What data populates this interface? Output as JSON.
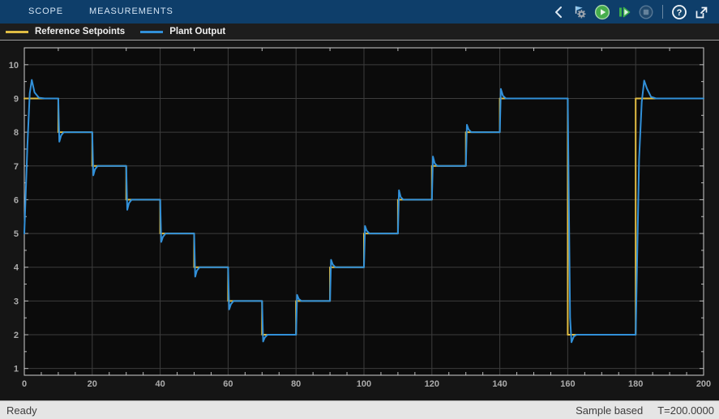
{
  "tab_bar": {
    "tabs": [
      {
        "label": "SCOPE"
      },
      {
        "label": "MEASUREMENTS"
      }
    ]
  },
  "toolbar": {
    "buttons": [
      {
        "icon": "chevron-collapse",
        "enabled": true
      },
      {
        "icon": "simulation-settings-flag-gear",
        "enabled": true
      },
      {
        "icon": "run",
        "enabled": true
      },
      {
        "icon": "step-forward",
        "enabled": true
      },
      {
        "icon": "stop",
        "enabled": false
      },
      {
        "icon": "help",
        "enabled": true
      },
      {
        "icon": "pop-out",
        "enabled": true
      }
    ],
    "help_glyph": "?"
  },
  "legend": {
    "items": [
      {
        "label": "Reference Setpoints",
        "color": "#e0bc43"
      },
      {
        "label": "Plant Output",
        "color": "#3190d9"
      }
    ]
  },
  "status_bar": {
    "left": "Ready",
    "sample_mode": "Sample based",
    "time": "T=200.0000"
  },
  "chart_data": {
    "type": "line",
    "title": "",
    "xlabel": "",
    "ylabel": "",
    "xlim": [
      0,
      200
    ],
    "ylim": [
      0.8,
      10.5
    ],
    "xticks": [
      0,
      20,
      40,
      60,
      80,
      100,
      120,
      140,
      160,
      180,
      200
    ],
    "yticks": [
      1,
      2,
      3,
      4,
      5,
      6,
      7,
      8,
      9,
      10
    ],
    "x_minor_step": 5,
    "y_minor_step": 0.5,
    "grid": true,
    "legend_position": "top-left-strip",
    "plot_bg": "#0b0b0b",
    "grid_color": "#3d3d3d",
    "axis_color": "#cfcfcf",
    "tick_color": "#b8b8b8",
    "tick_label_color": "#acacac",
    "series": [
      {
        "name": "Reference Setpoints",
        "color": "#e0bc43",
        "style": "step",
        "points": [
          [
            0,
            9
          ],
          [
            10,
            9
          ],
          [
            10,
            8
          ],
          [
            20,
            8
          ],
          [
            20,
            7
          ],
          [
            30,
            7
          ],
          [
            30,
            6
          ],
          [
            40,
            6
          ],
          [
            40,
            5
          ],
          [
            50,
            5
          ],
          [
            50,
            4
          ],
          [
            60,
            4
          ],
          [
            60,
            3
          ],
          [
            70,
            3
          ],
          [
            70,
            2
          ],
          [
            80,
            2
          ],
          [
            80,
            3
          ],
          [
            90,
            3
          ],
          [
            90,
            4
          ],
          [
            100,
            4
          ],
          [
            100,
            5
          ],
          [
            110,
            5
          ],
          [
            110,
            6
          ],
          [
            120,
            6
          ],
          [
            120,
            7
          ],
          [
            130,
            7
          ],
          [
            130,
            8
          ],
          [
            140,
            8
          ],
          [
            140,
            9
          ],
          [
            160,
            9
          ],
          [
            160,
            2
          ],
          [
            180,
            2
          ],
          [
            180,
            9
          ],
          [
            200,
            9
          ]
        ]
      },
      {
        "name": "Plant Output",
        "color": "#3190d9",
        "style": "line",
        "points": [
          [
            0,
            5
          ],
          [
            0.9,
            7.6
          ],
          [
            1.6,
            9.15
          ],
          [
            2.2,
            9.55
          ],
          [
            3.0,
            9.18
          ],
          [
            4.3,
            9.02
          ],
          [
            6,
            9
          ],
          [
            10,
            9
          ],
          [
            10.3,
            7.72
          ],
          [
            10.8,
            7.9
          ],
          [
            11.6,
            8
          ],
          [
            20,
            8
          ],
          [
            20.3,
            6.72
          ],
          [
            20.8,
            6.9
          ],
          [
            21.6,
            7
          ],
          [
            30,
            7
          ],
          [
            30.3,
            5.7
          ],
          [
            30.8,
            5.9
          ],
          [
            31.6,
            6
          ],
          [
            40,
            6
          ],
          [
            40.3,
            4.75
          ],
          [
            40.8,
            4.9
          ],
          [
            41.6,
            5
          ],
          [
            50,
            5
          ],
          [
            50.3,
            3.72
          ],
          [
            50.8,
            3.9
          ],
          [
            51.6,
            4
          ],
          [
            60,
            4
          ],
          [
            60.3,
            2.75
          ],
          [
            60.8,
            2.9
          ],
          [
            61.6,
            3
          ],
          [
            70,
            3
          ],
          [
            70.3,
            1.8
          ],
          [
            70.8,
            1.92
          ],
          [
            71.6,
            2
          ],
          [
            80,
            2
          ],
          [
            80.3,
            3.18
          ],
          [
            80.8,
            3.06
          ],
          [
            81.6,
            3
          ],
          [
            90,
            3
          ],
          [
            90.3,
            4.22
          ],
          [
            90.8,
            4.08
          ],
          [
            91.6,
            4
          ],
          [
            100,
            4
          ],
          [
            100.3,
            5.22
          ],
          [
            100.8,
            5.08
          ],
          [
            101.6,
            5
          ],
          [
            110,
            5
          ],
          [
            110.3,
            6.28
          ],
          [
            110.8,
            6.08
          ],
          [
            111.6,
            6
          ],
          [
            120,
            6
          ],
          [
            120.3,
            7.28
          ],
          [
            120.8,
            7.08
          ],
          [
            121.6,
            7
          ],
          [
            130,
            7
          ],
          [
            130.3,
            8.22
          ],
          [
            130.8,
            8.08
          ],
          [
            131.6,
            8
          ],
          [
            140,
            8
          ],
          [
            140.3,
            9.28
          ],
          [
            140.9,
            9.08
          ],
          [
            141.8,
            9
          ],
          [
            160,
            9
          ],
          [
            160.7,
            2.5
          ],
          [
            161.1,
            1.78
          ],
          [
            161.8,
            1.95
          ],
          [
            162.6,
            2
          ],
          [
            180,
            2
          ],
          [
            181,
            7.2
          ],
          [
            181.8,
            8.9
          ],
          [
            182.5,
            9.53
          ],
          [
            183.3,
            9.3
          ],
          [
            184.5,
            9.05
          ],
          [
            186,
            9
          ],
          [
            200,
            9
          ]
        ]
      }
    ]
  }
}
